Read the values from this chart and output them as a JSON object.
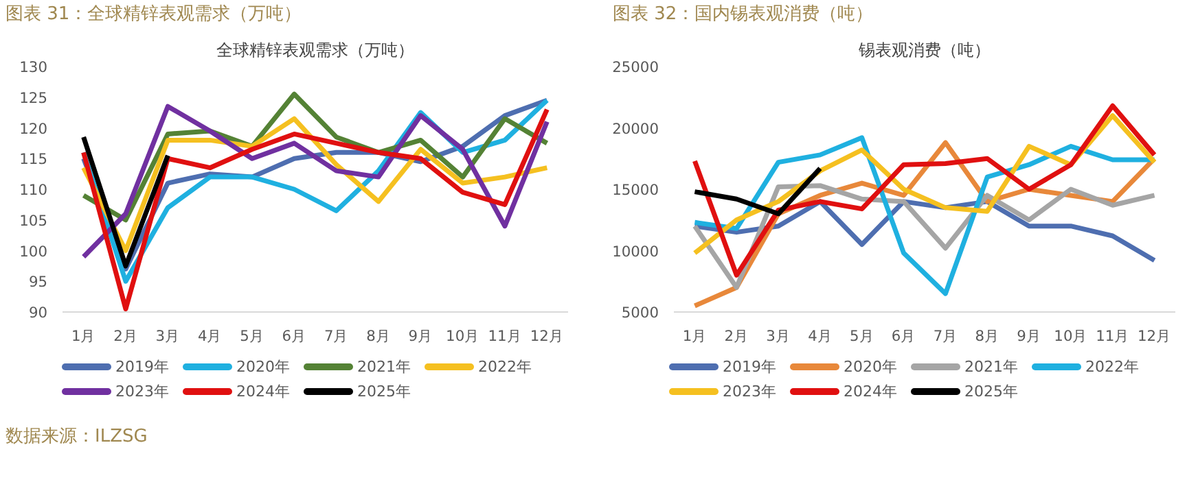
{
  "chart_data": [
    {
      "type": "line",
      "title": "图表 31：全球精锌表观需求（万吨）",
      "subtitle": "全球精锌表观需求（万吨）",
      "categories": [
        "1月",
        "2月",
        "3月",
        "4月",
        "5月",
        "6月",
        "7月",
        "8月",
        "9月",
        "10月",
        "11月",
        "12月"
      ],
      "ylim": [
        90,
        130
      ],
      "yticks": [
        90,
        95,
        100,
        105,
        110,
        115,
        120,
        125,
        130
      ],
      "grid": false,
      "legend": "bottom",
      "annotations": [
        "数据来源：ILZSG"
      ],
      "series": [
        {
          "name": "2019年",
          "color": "#4e6eb0",
          "values": [
            115,
            97,
            111,
            112.5,
            112,
            115,
            116,
            116,
            114.5,
            117,
            122,
            124.5
          ]
        },
        {
          "name": "2020年",
          "color": "#1fb0e0",
          "values": [
            116,
            95,
            107,
            112,
            112,
            110,
            106.5,
            113,
            122.5,
            116,
            118,
            124.5
          ]
        },
        {
          "name": "2021年",
          "color": "#548235",
          "values": [
            109,
            105,
            119,
            119.5,
            117,
            125.5,
            118.5,
            116,
            118,
            112,
            121.5,
            117.5
          ]
        },
        {
          "name": "2022年",
          "color": "#f5c020",
          "values": [
            113.5,
            100,
            118,
            118,
            117,
            121.5,
            114,
            108,
            116.5,
            111,
            112,
            113.5
          ]
        },
        {
          "name": "2023年",
          "color": "#7030a0",
          "values": [
            99,
            106,
            123.5,
            119.5,
            115,
            117.5,
            113,
            112,
            122,
            116.5,
            104,
            121
          ]
        },
        {
          "name": "2024年",
          "color": "#e01010",
          "values": [
            116,
            90.5,
            115,
            113.5,
            116.5,
            119,
            117.5,
            116,
            115,
            109.5,
            107.5,
            123
          ]
        },
        {
          "name": "2025年",
          "color": "#000000",
          "values": [
            118.5,
            97.5,
            115.5,
            null,
            null,
            null,
            null,
            null,
            null,
            null,
            null,
            null
          ]
        }
      ]
    },
    {
      "type": "line",
      "title": "图表 32：国内锡表观消费（吨）",
      "subtitle": "锡表观消费（吨）",
      "categories": [
        "1月",
        "2月",
        "3月",
        "4月",
        "5月",
        "6月",
        "7月",
        "8月",
        "9月",
        "10月",
        "11月",
        "12月"
      ],
      "ylim": [
        5000,
        25000
      ],
      "yticks": [
        5000,
        10000,
        15000,
        20000,
        25000
      ],
      "grid": false,
      "legend": "bottom",
      "series": [
        {
          "name": "2019年",
          "color": "#4e6eb0",
          "values": [
            12000,
            11500,
            12000,
            14000,
            10500,
            14000,
            13500,
            14000,
            12000,
            12000,
            11200,
            9200
          ]
        },
        {
          "name": "2020年",
          "color": "#e8883a",
          "values": [
            5500,
            7000,
            13000,
            14500,
            15500,
            14500,
            18800,
            14000,
            15000,
            14500,
            14000,
            17500
          ]
        },
        {
          "name": "2021年",
          "color": "#a5a5a5",
          "values": [
            12000,
            7000,
            15200,
            15300,
            14200,
            14000,
            10200,
            14500,
            12500,
            15000,
            13700,
            14500
          ]
        },
        {
          "name": "2022年",
          "color": "#1fb0e0",
          "values": [
            12300,
            11800,
            17200,
            17800,
            19200,
            9800,
            6500,
            16000,
            17000,
            18500,
            17400,
            17400
          ]
        },
        {
          "name": "2023年",
          "color": "#f5c020",
          "values": [
            9800,
            12500,
            14000,
            16500,
            18200,
            15000,
            13500,
            13200,
            18500,
            17000,
            21000,
            17200
          ]
        },
        {
          "name": "2024年",
          "color": "#e01010",
          "values": [
            17300,
            8000,
            13300,
            14000,
            13400,
            17000,
            17100,
            17500,
            15000,
            17000,
            21800,
            17800
          ]
        },
        {
          "name": "2025年",
          "color": "#000000",
          "values": [
            14800,
            14200,
            13000,
            16700,
            null,
            null,
            null,
            null,
            null,
            null,
            null,
            null
          ]
        }
      ]
    }
  ]
}
